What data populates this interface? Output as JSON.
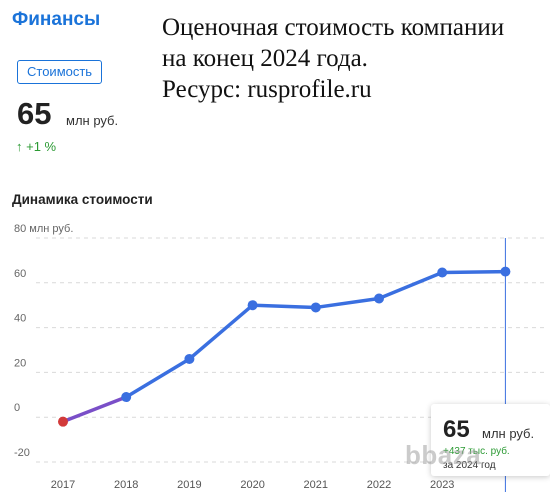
{
  "section": {
    "title": "Финансы"
  },
  "caption": {
    "line1": "Оценочная стоимость компании",
    "line2": "на конец 2024 года.",
    "line3": "Ресурс: rusprofile.ru"
  },
  "tab": {
    "label": "Стоимость"
  },
  "summary": {
    "value": "65",
    "unit": "млн руб.",
    "change": "↑ +1 %"
  },
  "chart_title": "Динамика стоимости",
  "tooltip": {
    "value": "65",
    "unit": "млн руб.",
    "change": "+437 тыс. руб.",
    "date": "за 2024 год"
  },
  "watermark": "bbaza",
  "colors": {
    "brand": "#1a73d9",
    "line": "#3a6fe0",
    "first_point": "#d23a3a",
    "positive": "#2b9a33"
  },
  "chart_data": {
    "type": "line",
    "title": "Динамика стоимости",
    "ylabel": "80 млн руб.",
    "x": [
      "2017",
      "2018",
      "2019",
      "2020",
      "2021",
      "2022",
      "2023",
      "2024"
    ],
    "values": [
      -2,
      9,
      26,
      50,
      49,
      53,
      64.6,
      65
    ],
    "ylim": [
      -20,
      80
    ],
    "yticks": [
      -20,
      0,
      20,
      40,
      60,
      80
    ],
    "ytick_labels": [
      "-20",
      "0",
      "20",
      "40",
      "60",
      "80 млн руб."
    ],
    "xtick_labels": [
      "2017",
      "2018",
      "2019",
      "2020",
      "2021",
      "2022",
      "2023"
    ],
    "grid": true,
    "highlight_index": 7
  }
}
